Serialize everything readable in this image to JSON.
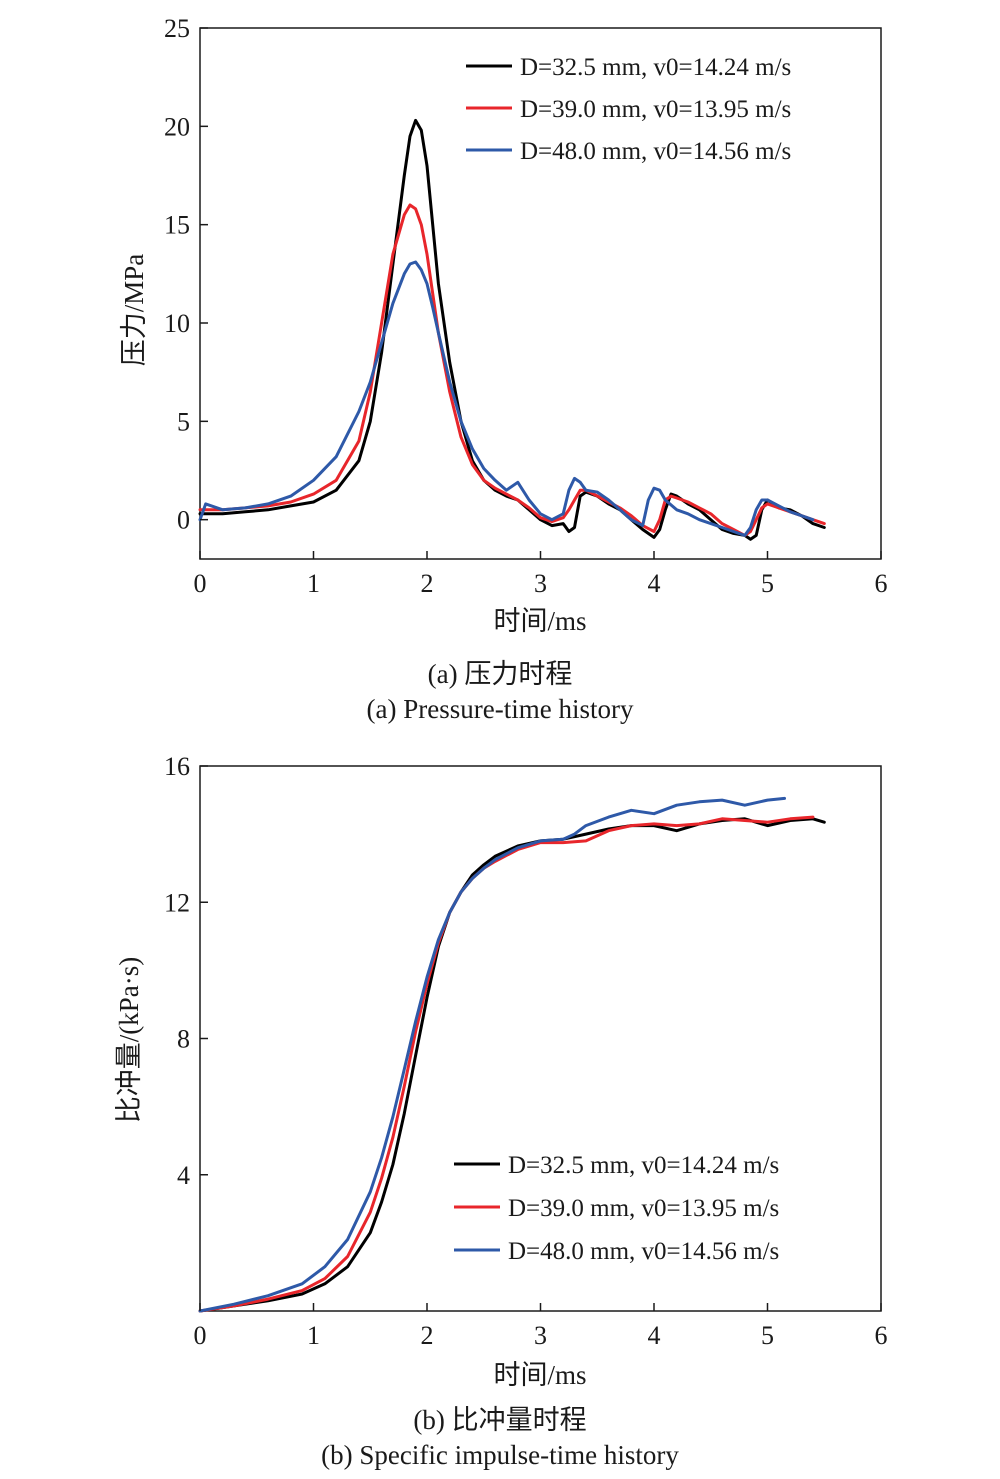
{
  "chart_data": [
    {
      "type": "line",
      "xlabel": "时间/ms",
      "ylabel": "压力/MPa",
      "xlim": [
        0,
        6
      ],
      "ylim": [
        -2,
        25
      ],
      "xticks": [
        0,
        1,
        2,
        3,
        4,
        5,
        6
      ],
      "yticks": [
        0,
        5,
        10,
        15,
        20,
        25
      ],
      "grid": false,
      "legend_position": "top-right",
      "caption_cn": "(a) 压力时程",
      "caption_en": "(a) Pressure-time history",
      "series": [
        {
          "name": "D=32.5 mm, v0=14.24 m/s",
          "color": "#000000",
          "x": [
            0,
            0.2,
            0.4,
            0.6,
            0.8,
            1.0,
            1.2,
            1.4,
            1.5,
            1.6,
            1.7,
            1.8,
            1.85,
            1.9,
            1.95,
            2.0,
            2.05,
            2.1,
            2.2,
            2.3,
            2.4,
            2.5,
            2.6,
            2.7,
            2.8,
            2.9,
            3.0,
            3.1,
            3.2,
            3.25,
            3.3,
            3.35,
            3.4,
            3.5,
            3.6,
            3.7,
            3.8,
            3.9,
            4.0,
            4.05,
            4.1,
            4.15,
            4.2,
            4.3,
            4.4,
            4.5,
            4.6,
            4.7,
            4.8,
            4.85,
            4.9,
            4.95,
            5.0,
            5.1,
            5.2,
            5.3,
            5.4,
            5.5
          ],
          "y": [
            0.3,
            0.3,
            0.4,
            0.5,
            0.7,
            0.9,
            1.5,
            3.0,
            5.0,
            8.5,
            13.0,
            17.5,
            19.5,
            20.3,
            19.8,
            18.0,
            15.0,
            12.0,
            8.0,
            5.0,
            3.0,
            2.0,
            1.5,
            1.2,
            1.0,
            0.5,
            0.0,
            -0.3,
            -0.2,
            -0.6,
            -0.4,
            1.2,
            1.4,
            1.2,
            0.8,
            0.5,
            0.0,
            -0.5,
            -0.9,
            -0.5,
            0.5,
            1.3,
            1.2,
            0.8,
            0.5,
            0.0,
            -0.5,
            -0.7,
            -0.8,
            -1.0,
            -0.8,
            0.5,
            1.0,
            0.6,
            0.5,
            0.2,
            -0.2,
            -0.4
          ]
        },
        {
          "name": "D=39.0 mm, v0=13.95 m/s",
          "color": "#e8262b",
          "x": [
            0,
            0.2,
            0.4,
            0.6,
            0.8,
            1.0,
            1.2,
            1.4,
            1.5,
            1.6,
            1.7,
            1.8,
            1.85,
            1.9,
            1.95,
            2.0,
            2.05,
            2.1,
            2.2,
            2.3,
            2.4,
            2.5,
            2.6,
            2.7,
            2.8,
            2.9,
            3.0,
            3.1,
            3.2,
            3.25,
            3.3,
            3.35,
            3.4,
            3.5,
            3.6,
            3.7,
            3.8,
            3.9,
            4.0,
            4.05,
            4.1,
            4.15,
            4.2,
            4.3,
            4.4,
            4.5,
            4.6,
            4.7,
            4.8,
            4.85,
            4.9,
            4.95,
            5.0,
            5.1,
            5.2,
            5.3,
            5.4,
            5.5
          ],
          "y": [
            0.5,
            0.5,
            0.6,
            0.7,
            0.9,
            1.3,
            2.0,
            4.0,
            6.5,
            10.0,
            13.5,
            15.5,
            16.0,
            15.8,
            15.0,
            13.5,
            11.5,
            9.5,
            6.5,
            4.2,
            2.8,
            2.0,
            1.6,
            1.3,
            1.0,
            0.6,
            0.1,
            -0.1,
            0.1,
            0.5,
            1.0,
            1.5,
            1.5,
            1.2,
            0.9,
            0.6,
            0.2,
            -0.3,
            -0.6,
            0.0,
            1.0,
            1.2,
            1.1,
            0.9,
            0.6,
            0.3,
            -0.2,
            -0.5,
            -0.8,
            -0.6,
            0.0,
            0.6,
            0.8,
            0.6,
            0.4,
            0.2,
            0.0,
            -0.2
          ]
        },
        {
          "name": "D=48.0 mm, v0=14.56 m/s",
          "color": "#2e59a8",
          "x": [
            0,
            0.05,
            0.2,
            0.4,
            0.6,
            0.8,
            1.0,
            1.2,
            1.4,
            1.5,
            1.6,
            1.7,
            1.8,
            1.85,
            1.9,
            1.95,
            2.0,
            2.05,
            2.1,
            2.2,
            2.3,
            2.4,
            2.5,
            2.6,
            2.7,
            2.8,
            2.9,
            3.0,
            3.1,
            3.2,
            3.25,
            3.3,
            3.35,
            3.4,
            3.5,
            3.6,
            3.7,
            3.8,
            3.9,
            3.95,
            4.0,
            4.05,
            4.1,
            4.2,
            4.3,
            4.4,
            4.5,
            4.6,
            4.7,
            4.8,
            4.85,
            4.9,
            4.95,
            5.0,
            5.1,
            5.2,
            5.3,
            5.4
          ],
          "y": [
            0.0,
            0.8,
            0.5,
            0.6,
            0.8,
            1.2,
            2.0,
            3.2,
            5.5,
            7.0,
            9.0,
            11.0,
            12.5,
            13.0,
            13.1,
            12.7,
            12.0,
            10.8,
            9.5,
            7.0,
            5.0,
            3.6,
            2.6,
            2.0,
            1.5,
            1.9,
            1.0,
            0.3,
            0.0,
            0.3,
            1.5,
            2.1,
            1.9,
            1.5,
            1.4,
            1.0,
            0.5,
            0.0,
            -0.3,
            1.0,
            1.6,
            1.5,
            1.0,
            0.5,
            0.3,
            0.0,
            -0.2,
            -0.4,
            -0.6,
            -0.8,
            -0.4,
            0.5,
            1.0,
            1.0,
            0.7,
            0.4,
            0.2,
            0.0
          ]
        }
      ]
    },
    {
      "type": "line",
      "xlabel": "时间/ms",
      "ylabel": "比冲量/(kPa·s)",
      "xlim": [
        0,
        6
      ],
      "ylim": [
        0,
        16
      ],
      "xticks": [
        0,
        1,
        2,
        3,
        4,
        5,
        6
      ],
      "yticks": [
        4,
        8,
        12,
        16
      ],
      "grid": false,
      "legend_position": "bottom-right",
      "caption_cn": "(b) 比冲量时程",
      "caption_en": "(b) Specific impulse-time history",
      "series": [
        {
          "name": "D=32.5 mm, v0=14.24 m/s",
          "color": "#000000",
          "x": [
            0,
            0.3,
            0.6,
            0.9,
            1.1,
            1.3,
            1.5,
            1.6,
            1.7,
            1.8,
            1.9,
            2.0,
            2.1,
            2.2,
            2.3,
            2.4,
            2.5,
            2.6,
            2.8,
            3.0,
            3.2,
            3.4,
            3.6,
            3.8,
            4.0,
            4.2,
            4.4,
            4.6,
            4.8,
            5.0,
            5.2,
            5.4,
            5.5
          ],
          "y": [
            0,
            0.15,
            0.3,
            0.5,
            0.8,
            1.3,
            2.3,
            3.2,
            4.3,
            5.8,
            7.5,
            9.2,
            10.7,
            11.7,
            12.3,
            12.8,
            13.1,
            13.35,
            13.65,
            13.8,
            13.85,
            14.0,
            14.15,
            14.25,
            14.25,
            14.1,
            14.3,
            14.4,
            14.45,
            14.25,
            14.4,
            14.45,
            14.35
          ]
        },
        {
          "name": "D=39.0 mm, v0=13.95 m/s",
          "color": "#e8262b",
          "x": [
            0,
            0.3,
            0.6,
            0.9,
            1.1,
            1.3,
            1.5,
            1.6,
            1.7,
            1.8,
            1.9,
            2.0,
            2.1,
            2.2,
            2.3,
            2.4,
            2.5,
            2.6,
            2.8,
            3.0,
            3.2,
            3.4,
            3.6,
            3.8,
            4.0,
            4.2,
            4.4,
            4.6,
            4.8,
            5.0,
            5.2,
            5.4
          ],
          "y": [
            0,
            0.15,
            0.35,
            0.6,
            0.95,
            1.6,
            2.9,
            3.9,
            5.1,
            6.6,
            8.2,
            9.6,
            10.8,
            11.7,
            12.3,
            12.7,
            13.0,
            13.2,
            13.55,
            13.75,
            13.75,
            13.8,
            14.1,
            14.25,
            14.3,
            14.25,
            14.3,
            14.45,
            14.4,
            14.35,
            14.45,
            14.5
          ]
        },
        {
          "name": "D=48.0 mm, v0=14.56 m/s",
          "color": "#2e59a8",
          "x": [
            0,
            0.3,
            0.6,
            0.9,
            1.1,
            1.3,
            1.5,
            1.6,
            1.7,
            1.8,
            1.9,
            2.0,
            2.1,
            2.2,
            2.3,
            2.4,
            2.5,
            2.6,
            2.8,
            3.0,
            3.2,
            3.3,
            3.4,
            3.6,
            3.8,
            4.0,
            4.2,
            4.4,
            4.6,
            4.8,
            5.0,
            5.15
          ],
          "y": [
            0,
            0.2,
            0.45,
            0.8,
            1.3,
            2.1,
            3.5,
            4.5,
            5.7,
            7.1,
            8.5,
            9.8,
            10.9,
            11.7,
            12.3,
            12.7,
            13.0,
            13.25,
            13.6,
            13.8,
            13.85,
            14.0,
            14.25,
            14.5,
            14.7,
            14.6,
            14.85,
            14.95,
            15.0,
            14.85,
            15.0,
            15.05
          ]
        }
      ]
    }
  ]
}
